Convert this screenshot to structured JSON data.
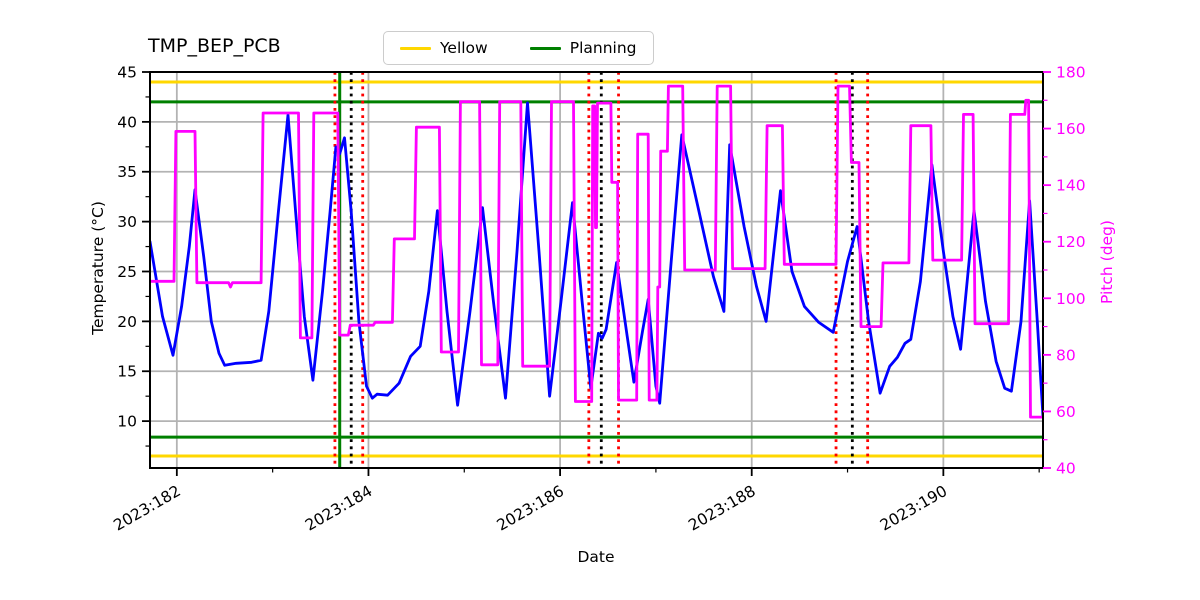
{
  "title": "TMP_BEP_PCB",
  "legend": {
    "items": [
      {
        "label": "Yellow",
        "color": "#ffd700"
      },
      {
        "label": "Planning",
        "color": "#008000"
      }
    ]
  },
  "axes": {
    "x": {
      "label": "Date",
      "tick_values": [
        182,
        184,
        186,
        188,
        190
      ],
      "tick_labels": [
        "2023:182",
        "2023:184",
        "2023:186",
        "2023:188",
        "2023:190"
      ],
      "minor_tick_values": [
        183,
        185,
        187,
        189,
        191
      ],
      "range": [
        181.72,
        191.04
      ]
    },
    "y_left": {
      "label": "Temperature (°C)",
      "tick_values": [
        45,
        40,
        35,
        30,
        25,
        20,
        15,
        10
      ],
      "tick_labels": [
        "45",
        "40",
        "35",
        "30",
        "25",
        "20",
        "15",
        "10"
      ],
      "minor_tick_values": [
        42.5,
        37.5,
        32.5,
        27.5,
        22.5,
        17.5,
        12.5,
        7.5
      ],
      "range": [
        5.3,
        45
      ],
      "color": "#000000"
    },
    "y_right": {
      "label": "Pitch (deg)",
      "tick_values": [
        180,
        160,
        140,
        120,
        100,
        80,
        60,
        40
      ],
      "tick_labels": [
        "180",
        "160",
        "140",
        "120",
        "100",
        "80",
        "60",
        "40"
      ],
      "minor_tick_values": [
        170,
        150,
        130,
        110,
        90,
        70,
        50
      ],
      "range": [
        40,
        180
      ],
      "color": "#ff00ff"
    }
  },
  "chart_data": {
    "type": "line",
    "title": "TMP_BEP_PCB",
    "xlabel": "Date",
    "x_units": "2023 day-of-year",
    "xlim": [
      181.72,
      191.04
    ],
    "ylim_left": [
      5.3,
      45
    ],
    "ylim_right": [
      40,
      180
    ],
    "grid": true,
    "grid_color": "#b3b3b3",
    "legend_position": "top-center-outside",
    "series": [
      {
        "name": "temperature",
        "axis": "left",
        "color": "#0000ff",
        "width": 2.8,
        "points": [
          [
            181.72,
            28.0
          ],
          [
            181.85,
            20.5
          ],
          [
            181.96,
            16.6
          ],
          [
            182.05,
            21.5
          ],
          [
            182.13,
            27.5
          ],
          [
            182.19,
            33.2
          ],
          [
            182.28,
            26.5
          ],
          [
            182.36,
            20.0
          ],
          [
            182.44,
            16.8
          ],
          [
            182.5,
            15.6
          ],
          [
            182.62,
            15.8
          ],
          [
            182.78,
            15.9
          ],
          [
            182.88,
            16.1
          ],
          [
            182.96,
            21.0
          ],
          [
            183.06,
            31.0
          ],
          [
            183.16,
            40.7
          ],
          [
            183.24,
            31.0
          ],
          [
            183.33,
            20.5
          ],
          [
            183.42,
            14.1
          ],
          [
            183.52,
            23.0
          ],
          [
            183.6,
            31.0
          ],
          [
            183.66,
            37.5
          ],
          [
            183.7,
            36.8
          ],
          [
            183.75,
            38.4
          ],
          [
            183.82,
            31.0
          ],
          [
            183.9,
            20.0
          ],
          [
            183.98,
            13.5
          ],
          [
            184.04,
            12.3
          ],
          [
            184.09,
            12.7
          ],
          [
            184.2,
            12.6
          ],
          [
            184.32,
            13.8
          ],
          [
            184.44,
            16.5
          ],
          [
            184.54,
            17.5
          ],
          [
            184.63,
            23.0
          ],
          [
            184.72,
            31.1
          ],
          [
            184.82,
            21.0
          ],
          [
            184.93,
            11.6
          ],
          [
            185.06,
            21.0
          ],
          [
            185.19,
            31.4
          ],
          [
            185.31,
            21.5
          ],
          [
            185.43,
            12.3
          ],
          [
            185.55,
            27.0
          ],
          [
            185.66,
            41.9
          ],
          [
            185.78,
            27.0
          ],
          [
            185.89,
            12.5
          ],
          [
            186.01,
            22.0
          ],
          [
            186.13,
            31.9
          ],
          [
            186.23,
            22.0
          ],
          [
            186.32,
            13.3
          ],
          [
            186.4,
            18.8
          ],
          [
            186.44,
            18.3
          ],
          [
            186.48,
            19.2
          ],
          [
            186.59,
            25.9
          ],
          [
            186.7,
            18.5
          ],
          [
            186.77,
            13.9
          ],
          [
            186.86,
            19.0
          ],
          [
            186.92,
            22.2
          ],
          [
            187.0,
            13.5
          ],
          [
            187.04,
            11.8
          ],
          [
            187.16,
            26.0
          ],
          [
            187.27,
            38.7
          ],
          [
            187.45,
            31.0
          ],
          [
            187.6,
            24.5
          ],
          [
            187.71,
            21.0
          ],
          [
            187.77,
            37.7
          ],
          [
            187.92,
            29.5
          ],
          [
            188.05,
            23.5
          ],
          [
            188.15,
            20.0
          ],
          [
            188.3,
            33.1
          ],
          [
            188.42,
            25.0
          ],
          [
            188.55,
            21.5
          ],
          [
            188.7,
            19.9
          ],
          [
            188.85,
            18.9
          ],
          [
            189.0,
            26.0
          ],
          [
            189.1,
            29.5
          ],
          [
            189.22,
            20.0
          ],
          [
            189.34,
            12.8
          ],
          [
            189.44,
            15.5
          ],
          [
            189.52,
            16.4
          ],
          [
            189.6,
            17.8
          ],
          [
            189.66,
            18.2
          ],
          [
            189.76,
            24.0
          ],
          [
            189.88,
            35.7
          ],
          [
            190.0,
            27.0
          ],
          [
            190.1,
            20.5
          ],
          [
            190.18,
            17.2
          ],
          [
            190.32,
            31.1
          ],
          [
            190.44,
            22.0
          ],
          [
            190.55,
            16.0
          ],
          [
            190.64,
            13.3
          ],
          [
            190.71,
            13.0
          ],
          [
            190.81,
            20.0
          ],
          [
            190.9,
            32.1
          ],
          [
            190.98,
            20.0
          ],
          [
            191.04,
            10.4
          ]
        ]
      },
      {
        "name": "pitch",
        "axis": "right",
        "color": "#ff00ff",
        "width": 2.8,
        "points": [
          [
            181.72,
            106
          ],
          [
            181.97,
            106
          ],
          [
            181.99,
            159
          ],
          [
            182.19,
            159
          ],
          [
            182.21,
            105.5
          ],
          [
            182.54,
            105.5
          ],
          [
            182.56,
            104
          ],
          [
            182.58,
            105.5
          ],
          [
            182.88,
            105.5
          ],
          [
            182.9,
            165.5
          ],
          [
            183.27,
            165.5
          ],
          [
            183.29,
            86
          ],
          [
            183.41,
            86
          ],
          [
            183.43,
            165.5
          ],
          [
            183.68,
            165.5
          ],
          [
            183.7,
            87
          ],
          [
            183.79,
            87
          ],
          [
            183.81,
            90.5
          ],
          [
            184.05,
            90.5
          ],
          [
            184.07,
            91.5
          ],
          [
            184.25,
            91.5
          ],
          [
            184.27,
            121
          ],
          [
            184.48,
            121
          ],
          [
            184.5,
            160.5
          ],
          [
            184.74,
            160.5
          ],
          [
            184.76,
            81
          ],
          [
            184.94,
            81
          ],
          [
            184.96,
            169.5
          ],
          [
            185.16,
            169.5
          ],
          [
            185.18,
            76.5
          ],
          [
            185.35,
            76.5
          ],
          [
            185.37,
            169.5
          ],
          [
            185.59,
            169.5
          ],
          [
            185.61,
            76
          ],
          [
            185.89,
            76
          ],
          [
            185.91,
            169.5
          ],
          [
            186.14,
            169.5
          ],
          [
            186.16,
            63.5
          ],
          [
            186.33,
            63.5
          ],
          [
            186.34,
            168
          ],
          [
            186.36,
            168
          ],
          [
            186.37,
            125
          ],
          [
            186.38,
            125
          ],
          [
            186.39,
            169
          ],
          [
            186.53,
            169
          ],
          [
            186.54,
            141
          ],
          [
            186.6,
            141
          ],
          [
            186.61,
            64
          ],
          [
            186.8,
            64
          ],
          [
            186.81,
            158
          ],
          [
            186.92,
            158
          ],
          [
            186.93,
            64
          ],
          [
            187.01,
            64
          ],
          [
            187.02,
            104
          ],
          [
            187.04,
            104
          ],
          [
            187.05,
            152
          ],
          [
            187.12,
            152
          ],
          [
            187.13,
            175
          ],
          [
            187.28,
            175
          ],
          [
            187.3,
            110
          ],
          [
            187.62,
            110
          ],
          [
            187.64,
            175
          ],
          [
            187.78,
            175
          ],
          [
            187.8,
            110.5
          ],
          [
            188.14,
            110.5
          ],
          [
            188.16,
            161
          ],
          [
            188.32,
            161
          ],
          [
            188.34,
            112
          ],
          [
            188.88,
            112
          ],
          [
            188.9,
            175
          ],
          [
            189.02,
            175
          ],
          [
            189.04,
            148
          ],
          [
            189.12,
            148
          ],
          [
            189.14,
            90
          ],
          [
            189.35,
            90
          ],
          [
            189.37,
            112.5
          ],
          [
            189.64,
            112.5
          ],
          [
            189.66,
            161
          ],
          [
            189.87,
            161
          ],
          [
            189.89,
            113.5
          ],
          [
            190.19,
            113.5
          ],
          [
            190.21,
            165
          ],
          [
            190.31,
            165
          ],
          [
            190.33,
            91
          ],
          [
            190.68,
            91
          ],
          [
            190.7,
            165
          ],
          [
            190.85,
            165
          ],
          [
            190.86,
            170
          ],
          [
            190.89,
            170
          ],
          [
            190.91,
            58
          ],
          [
            191.04,
            58
          ]
        ]
      }
    ],
    "hlines": [
      {
        "y": 44.0,
        "axis": "left",
        "color": "#ffd700",
        "style": "solid",
        "label": "Yellow"
      },
      {
        "y": 6.5,
        "axis": "left",
        "color": "#ffd700",
        "style": "solid",
        "label": "Yellow"
      },
      {
        "y": 42.0,
        "axis": "left",
        "color": "#008000",
        "style": "solid",
        "label": "Planning"
      },
      {
        "y": 8.4,
        "axis": "left",
        "color": "#008000",
        "style": "solid",
        "label": "Planning"
      }
    ],
    "vlines": [
      {
        "x": 183.65,
        "color": "#ff0000",
        "style": "dotted"
      },
      {
        "x": 183.7,
        "color": "#008000",
        "style": "solid"
      },
      {
        "x": 183.82,
        "color": "#000000",
        "style": "dotted"
      },
      {
        "x": 183.94,
        "color": "#ff0000",
        "style": "dotted"
      },
      {
        "x": 186.3,
        "color": "#ff0000",
        "style": "dotted"
      },
      {
        "x": 186.43,
        "color": "#000000",
        "style": "dotted"
      },
      {
        "x": 186.61,
        "color": "#ff0000",
        "style": "dotted"
      },
      {
        "x": 188.88,
        "color": "#ff0000",
        "style": "dotted"
      },
      {
        "x": 189.05,
        "color": "#000000",
        "style": "dotted"
      },
      {
        "x": 189.21,
        "color": "#ff0000",
        "style": "dotted"
      }
    ]
  }
}
